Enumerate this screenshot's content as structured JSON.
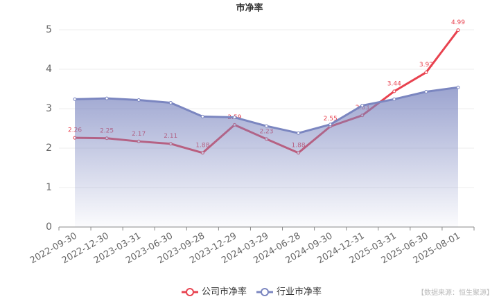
{
  "chart_data": {
    "type": "line",
    "title": "市净率",
    "categories": [
      "2022-09-30",
      "2022-12-30",
      "2023-03-31",
      "2023-06-30",
      "2023-09-28",
      "2023-12-29",
      "2024-03-29",
      "2024-06-28",
      "2024-09-30",
      "2024-12-31",
      "2025-03-31",
      "2025-06-30",
      "2025-08-01"
    ],
    "series": [
      {
        "name": "公司市净率",
        "color": "#e8424f",
        "values": [
          2.26,
          2.25,
          2.17,
          2.11,
          1.88,
          2.59,
          2.23,
          1.88,
          2.55,
          2.83,
          3.44,
          3.92,
          4.99
        ]
      },
      {
        "name": "行业市净率",
        "color": "#7b86c0",
        "area": true,
        "values": [
          3.24,
          3.26,
          3.22,
          3.15,
          2.8,
          2.78,
          2.56,
          2.38,
          2.6,
          3.08,
          3.24,
          3.43,
          3.54
        ]
      }
    ],
    "ylim": [
      0,
      5
    ],
    "yticks": [
      0,
      1,
      2,
      3,
      4,
      5
    ],
    "grid": true,
    "legend": "bottom",
    "source": "【数据来源：恒生聚源】"
  }
}
